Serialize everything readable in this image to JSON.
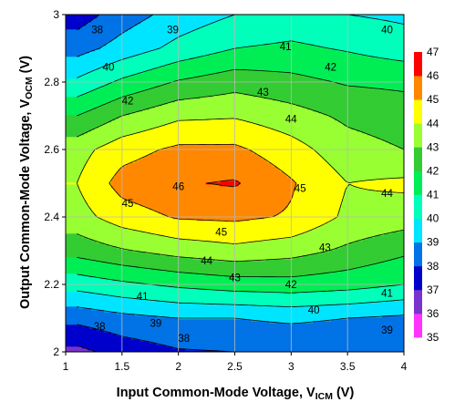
{
  "chart_data": {
    "type": "heatmap",
    "title": "",
    "xlabel": "Input Common-Mode Voltage, V",
    "xlabel_sub": "ICM",
    "xlabel_unit": " (V)",
    "ylabel": "Output Common-Mode Voltage, V",
    "ylabel_sub": "OCM",
    "ylabel_unit": " (V)",
    "xlim": [
      1,
      4
    ],
    "ylim": [
      2,
      3
    ],
    "xticks": [
      "1",
      "1.5",
      "2",
      "2.5",
      "3",
      "3.5",
      "4"
    ],
    "yticks": [
      "2",
      "2.2",
      "2.4",
      "2.6",
      "2.8",
      "3"
    ],
    "grid": true,
    "x": [
      1.1,
      1.5,
      2.0,
      2.5,
      3.0,
      3.5,
      4.0
    ],
    "y": [
      2.0,
      2.1,
      2.2,
      2.3,
      2.4,
      2.5,
      2.6,
      2.7,
      2.8,
      2.9,
      3.0
    ],
    "z": [
      [
        36.7,
        37.4,
        37.9,
        38.0,
        38.0,
        38.0,
        38.0
      ],
      [
        38.3,
        38.7,
        39.0,
        39.0,
        39.2,
        39.0,
        38.8
      ],
      [
        40.4,
        40.8,
        41.2,
        41.5,
        41.6,
        41.4,
        41.0
      ],
      [
        42.4,
        42.9,
        43.4,
        43.7,
        43.4,
        42.8,
        42.2
      ],
      [
        43.6,
        44.5,
        45.1,
        45.2,
        44.9,
        43.8,
        43.5
      ],
      [
        44.0,
        45.4,
        45.9,
        46.1,
        45.1,
        44.0,
        44.2
      ],
      [
        43.6,
        44.6,
        45.2,
        45.2,
        44.4,
        43.4,
        43.0
      ],
      [
        42.0,
        43.0,
        43.8,
        43.9,
        43.4,
        42.8,
        42.5
      ],
      [
        40.2,
        41.2,
        42.1,
        42.6,
        42.3,
        41.9,
        41.8
      ],
      [
        38.6,
        39.4,
        40.3,
        41.0,
        41.2,
        40.9,
        40.5
      ],
      [
        37.5,
        38.5,
        39.4,
        40.0,
        40.3,
        40.0,
        39.8
      ]
    ],
    "colorbar": {
      "levels": [
        35,
        36,
        37,
        38,
        39,
        40,
        41,
        42,
        43,
        44,
        45,
        46,
        47
      ],
      "colors": [
        "#ff33ff",
        "#7a33cc",
        "#0000cc",
        "#0073e6",
        "#00e5ff",
        "#00ffbb",
        "#00ee55",
        "#33cc33",
        "#99ff33",
        "#ffff00",
        "#ff8800",
        "#ff0000"
      ]
    },
    "contour_labels": [
      {
        "text": "38",
        "x": 1.28,
        "y": 2.955
      },
      {
        "text": "39",
        "x": 1.95,
        "y": 2.955
      },
      {
        "text": "40",
        "x": 3.85,
        "y": 2.955
      },
      {
        "text": "40",
        "x": 1.38,
        "y": 2.845
      },
      {
        "text": "41",
        "x": 2.95,
        "y": 2.905
      },
      {
        "text": "42",
        "x": 1.55,
        "y": 2.745
      },
      {
        "text": "42",
        "x": 3.35,
        "y": 2.845
      },
      {
        "text": "43",
        "x": 2.75,
        "y": 2.77
      },
      {
        "text": "44",
        "x": 3.0,
        "y": 2.69
      },
      {
        "text": "44",
        "x": 3.85,
        "y": 2.47
      },
      {
        "text": "45",
        "x": 1.55,
        "y": 2.44
      },
      {
        "text": "45",
        "x": 2.38,
        "y": 2.355
      },
      {
        "text": "45",
        "x": 3.08,
        "y": 2.485
      },
      {
        "text": "46",
        "x": 2.0,
        "y": 2.49
      },
      {
        "text": "44",
        "x": 2.25,
        "y": 2.27
      },
      {
        "text": "43",
        "x": 2.5,
        "y": 2.22
      },
      {
        "text": "43",
        "x": 3.3,
        "y": 2.31
      },
      {
        "text": "42",
        "x": 3.0,
        "y": 2.2
      },
      {
        "text": "41",
        "x": 3.85,
        "y": 2.175
      },
      {
        "text": "41",
        "x": 1.68,
        "y": 2.165
      },
      {
        "text": "40",
        "x": 3.2,
        "y": 2.125
      },
      {
        "text": "39",
        "x": 1.8,
        "y": 2.085
      },
      {
        "text": "39",
        "x": 3.85,
        "y": 2.065
      },
      {
        "text": "38",
        "x": 1.3,
        "y": 2.075
      },
      {
        "text": "38",
        "x": 2.05,
        "y": 2.04
      }
    ]
  }
}
